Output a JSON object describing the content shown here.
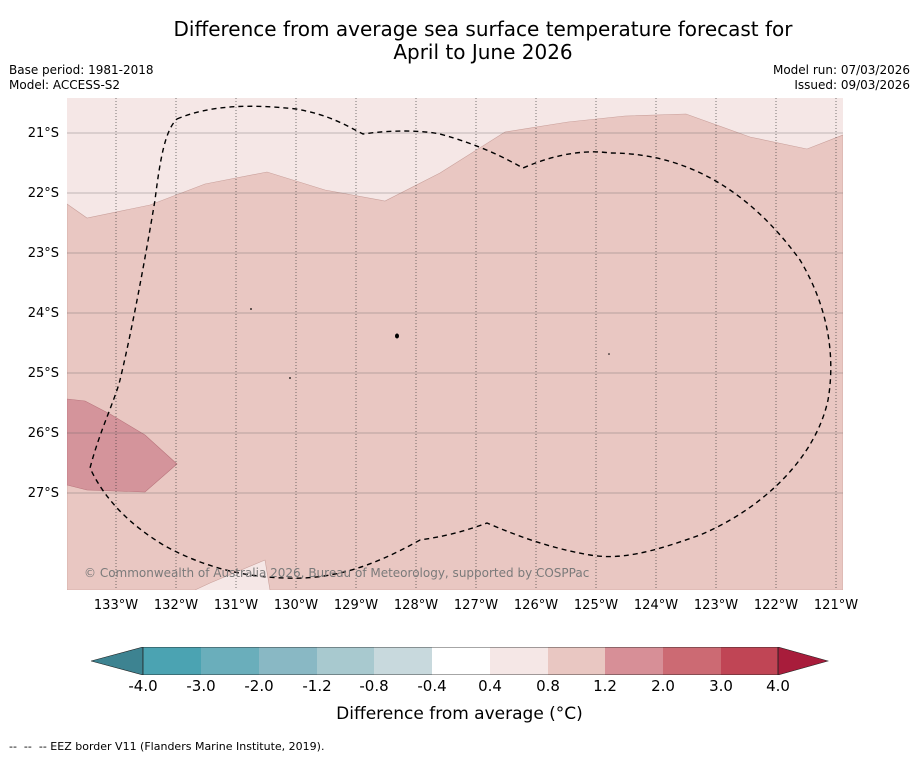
{
  "title_line1": "Difference from average sea surface temperature forecast for",
  "title_line2": "April to June 2026",
  "base_period": "Base period: 1981-2018",
  "model": "Model: ACCESS-S2",
  "model_run": "Model run: 07/03/2026",
  "issued": "Issued: 09/03/2026",
  "latitude_labels": [
    "21°S",
    "22°S",
    "23°S",
    "24°S",
    "25°S",
    "26°S",
    "27°S"
  ],
  "longitude_labels": [
    "133°W",
    "132°W",
    "131°W",
    "130°W",
    "129°W",
    "128°W",
    "127°W",
    "126°W",
    "125°W",
    "124°W",
    "123°W",
    "122°W",
    "121°W"
  ],
  "copyright": "© Commonwealth of Australia 2026, Bureau of Meteorology, supported by COSPPac",
  "colorbar": {
    "tick_labels": [
      "-4.0",
      "-3.0",
      "-2.0",
      "-1.2",
      "-0.8",
      "-0.4",
      "0.4",
      "0.8",
      "1.2",
      "2.0",
      "3.0",
      "4.0"
    ],
    "colors": [
      "#3d8391",
      "#4ba3b2",
      "#6aaebb",
      "#89b8c4",
      "#a8c9cf",
      "#c8d9dd",
      "#ffffff",
      "#f5e7e6",
      "#e9c7c2",
      "#d78f97",
      "#cc6a73",
      "#c04555",
      "#a81c3b"
    ],
    "label": "Difference from average (°C)"
  },
  "footnote": "--  --  -- EEZ border V11 (Flanders Marine Institute, 2019)."
}
